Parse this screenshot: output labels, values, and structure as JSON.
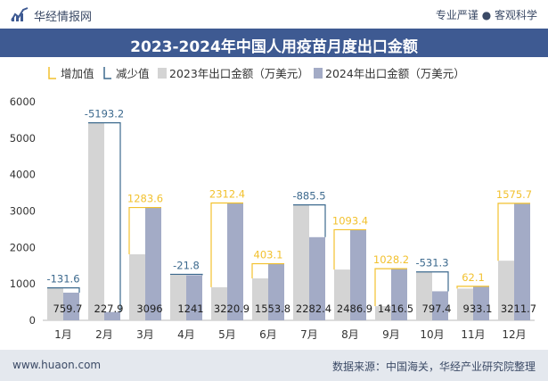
{
  "header": {
    "brand": "华经情报网",
    "tagline": "专业严谨 ● 客观科学"
  },
  "footer": {
    "website": "www.huaon.com",
    "source": "数据来源：中国海关，华经产业研究院整理"
  },
  "colors": {
    "increase": "#f2c12e",
    "decrease": "#3d6a8e",
    "series2023": "#d4d4d4",
    "series2024": "#a3abc6",
    "title_bar": "#3e5a92"
  },
  "chart_data": {
    "type": "bar",
    "title": "2023-2024年中国人用疫苗月度出口金额",
    "categories": [
      "1月",
      "2月",
      "3月",
      "4月",
      "5月",
      "6月",
      "7月",
      "8月",
      "9月",
      "10月",
      "11月",
      "12月"
    ],
    "series": [
      {
        "name": "2023年出口金额（万美元）",
        "values": [
          891.3,
          5421.1,
          1812.4,
          1262.8,
          908.5,
          1150.7,
          3167.9,
          1393.5,
          388.3,
          1328.7,
          871.0,
          1636.0
        ]
      },
      {
        "name": "2024年出口金额（万美元）",
        "values": [
          759.7,
          227.9,
          3096,
          1241,
          3220.9,
          1553.8,
          2282.4,
          2486.9,
          1416.5,
          797.4,
          933.1,
          3211.7
        ]
      }
    ],
    "changes": [
      -131.6,
      -5193.2,
      1283.6,
      -21.8,
      2312.4,
      403.1,
      -885.5,
      1093.4,
      1028.2,
      -531.3,
      62.1,
      1575.7
    ],
    "change_labels": [
      "-131.6",
      "-5193.2",
      "1283.6",
      "-21.8",
      "2312.4",
      "403.1",
      "-885.5",
      "1093.4",
      "1028.2",
      "-531.3",
      "62.1",
      "1575.7"
    ],
    "value_labels": [
      "759.7",
      "227.9",
      "3096",
      "1241",
      "3220.9",
      "1553.8",
      "2282.4",
      "2486.9",
      "1416.5",
      "797.4",
      "933.1",
      "3211.7"
    ],
    "legend": [
      "增加值",
      "减少值",
      "2023年出口金额（万美元）",
      "2024年出口金额（万美元）"
    ],
    "yticks": [
      "0",
      "1000",
      "2000",
      "3000",
      "4000",
      "5000",
      "6000"
    ],
    "ylim": [
      0,
      6000
    ],
    "legend_position": "top",
    "grid": false
  }
}
